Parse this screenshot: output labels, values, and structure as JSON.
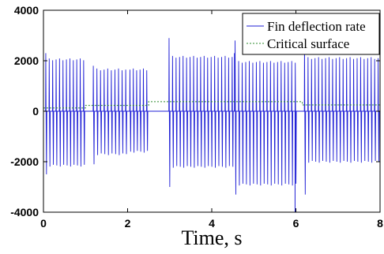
{
  "chart_data": {
    "type": "line",
    "title": "",
    "xlabel": "Time, s",
    "ylabel": "",
    "xlim": [
      0,
      8
    ],
    "ylim": [
      -4000,
      4000
    ],
    "x_ticks": [
      0,
      2,
      4,
      6,
      8
    ],
    "y_ticks": [
      -4000,
      -2000,
      0,
      2000,
      4000
    ],
    "x_tick_labels": [
      "0",
      "2",
      "4",
      "6",
      "8"
    ],
    "y_tick_labels": [
      "-4000",
      "-2000",
      "0",
      "2000",
      "4000"
    ],
    "grid": false,
    "legend_position": "top-right",
    "series": [
      {
        "name": "Fin deflection rate",
        "color": "#1f1fd6",
        "style": "solid",
        "segments": [
          {
            "x_start": 0.05,
            "x_end": 0.95,
            "count": 12,
            "peak_first": 2300,
            "peak_rest": 2050,
            "trough_first": -2500,
            "trough_rest": -2150
          },
          {
            "x_start": 1.18,
            "x_end": 1.95,
            "count": 10,
            "peak_first": 1800,
            "peak_rest": 1650,
            "trough_first": -2100,
            "trough_rest": -1700
          },
          {
            "x_start": 2.05,
            "x_end": 2.45,
            "count": 6,
            "peak_first": 1650,
            "peak_rest": 1650,
            "trough_first": -1600,
            "trough_rest": -1600
          },
          {
            "x_start": 2.98,
            "x_end": 4.48,
            "count": 19,
            "peak_first": 2900,
            "peak_rest": 2150,
            "trough_first": -3000,
            "trough_rest": -2200
          },
          {
            "x_start": 4.55,
            "x_end": 5.98,
            "count": 18,
            "peak_first": 2800,
            "peak_rest": 1950,
            "trough_first": -3300,
            "trough_rest": -2900
          },
          {
            "x_start": 6.2,
            "x_end": 7.95,
            "count": 22,
            "peak_first": 2800,
            "peak_rest": 2100,
            "trough_first": -3300,
            "trough_rest": -2000
          }
        ],
        "spikes": [
          {
            "x": 4.54,
            "value": 2300
          },
          {
            "x": 5.98,
            "value": -4000
          }
        ]
      },
      {
        "name": "Critical surface",
        "color": "#2e8b2e",
        "style": "dashed",
        "x": [
          0,
          1.0,
          1.0,
          2.5,
          2.5,
          6.15,
          6.15,
          8
        ],
        "y": [
          130,
          130,
          230,
          230,
          380,
          380,
          250,
          250
        ]
      }
    ]
  }
}
